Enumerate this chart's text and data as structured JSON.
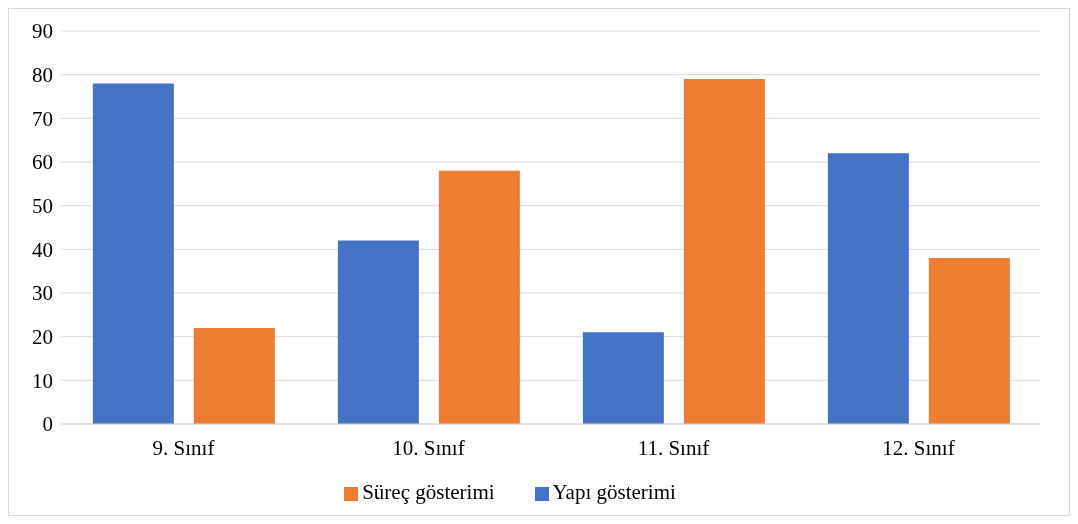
{
  "chart_data": {
    "type": "bar",
    "categories": [
      "9. Sınıf",
      "10. Sınıf",
      "11. Sınıf",
      "12. Sınıf"
    ],
    "series": [
      {
        "name": "Yapı gösterimi",
        "color": "#4472c4",
        "values": [
          78,
          42,
          21,
          62
        ]
      },
      {
        "name": "Süreç gösterimi",
        "color": "#ed7d31",
        "values": [
          22,
          58,
          79,
          38
        ]
      }
    ],
    "ylim": [
      0,
      90
    ],
    "yticks": [
      0,
      10,
      20,
      30,
      40,
      50,
      60,
      70,
      80,
      90
    ],
    "grid": "y",
    "legend": "bottom"
  }
}
